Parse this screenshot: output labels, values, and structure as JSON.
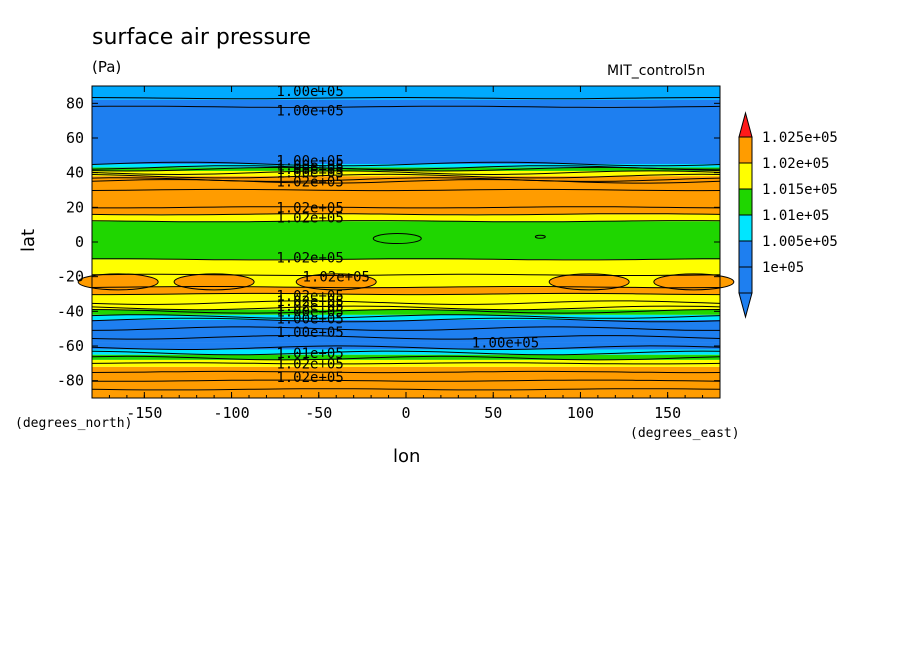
{
  "chart_data": {
    "type": "heatmap",
    "title": "surface air pressure",
    "units": "(Pa)",
    "run_name": "MIT_control5n",
    "xlabel": "lon",
    "ylabel": "lat",
    "x_units_label": "(degrees_east)",
    "y_units_label": "(degrees_north)",
    "xlim": [
      -180,
      180
    ],
    "ylim": [
      -90,
      90
    ],
    "x_ticks": [
      -150,
      -100,
      -50,
      0,
      50,
      100,
      150
    ],
    "y_ticks": [
      -80,
      -60,
      -40,
      -20,
      0,
      20,
      40,
      60,
      80
    ],
    "x_tick_labels": [
      "-150",
      "-100",
      "-50",
      "0",
      "50",
      "100",
      "150"
    ],
    "y_tick_labels": [
      "-80",
      "-60",
      "-40",
      "-20",
      "0",
      "20",
      "40",
      "60",
      "80"
    ],
    "colorbar": {
      "levels": [
        100000,
        100500,
        101000,
        101500,
        102000,
        102500
      ],
      "labels": [
        "1e+05",
        "1.005e+05",
        "1.01e+05",
        "1.015e+05",
        "1.02e+05",
        "1.025e+05"
      ],
      "colors": [
        "#1e7ff0",
        "#00e6ff",
        "#1fd600",
        "#ffff00",
        "#ff9c00",
        "#ff3030"
      ],
      "under_color": "#1e7ff0",
      "over_color": "#ff1a1a"
    },
    "zonal_bands": [
      {
        "lat_from": -90,
        "lat_to": -85,
        "color": "#ff9c00"
      },
      {
        "lat_from": -85,
        "lat_to": -72,
        "color": "#ff9c00"
      },
      {
        "lat_from": -72,
        "lat_to": -68,
        "color": "#ffff00"
      },
      {
        "lat_from": -68,
        "lat_to": -65,
        "color": "#1fd600"
      },
      {
        "lat_from": -65,
        "lat_to": -62,
        "color": "#00e6ff"
      },
      {
        "lat_from": -62,
        "lat_to": -58,
        "color": "#1e7ff0"
      },
      {
        "lat_from": -58,
        "lat_to": -45,
        "color": "#1e7ff0"
      },
      {
        "lat_from": -45,
        "lat_to": -42,
        "color": "#00e6ff"
      },
      {
        "lat_from": -42,
        "lat_to": -39,
        "color": "#1fd600"
      },
      {
        "lat_from": -39,
        "lat_to": -36,
        "color": "#ffff00"
      },
      {
        "lat_from": -36,
        "lat_to": -30,
        "color": "#ffff00"
      },
      {
        "lat_from": -30,
        "lat_to": -26,
        "color": "#ff9c00"
      },
      {
        "lat_from": -26,
        "lat_to": -19,
        "color": "#ffff00"
      },
      {
        "lat_from": -19,
        "lat_to": -10,
        "color": "#ffff00"
      },
      {
        "lat_from": -10,
        "lat_to": 12,
        "color": "#1fd600"
      },
      {
        "lat_from": 12,
        "lat_to": 16,
        "color": "#ffff00"
      },
      {
        "lat_from": 16,
        "lat_to": 38,
        "color": "#ff9c00"
      },
      {
        "lat_from": 38,
        "lat_to": 41,
        "color": "#ffff00"
      },
      {
        "lat_from": 41,
        "lat_to": 43,
        "color": "#1fd600"
      },
      {
        "lat_from": 43,
        "lat_to": 45,
        "color": "#00e6ff"
      },
      {
        "lat_from": 45,
        "lat_to": 78,
        "color": "#1e7ff0"
      },
      {
        "lat_from": 78,
        "lat_to": 82,
        "color": "#1e7ff0"
      },
      {
        "lat_from": 82,
        "lat_to": 90,
        "color": "#00aaff"
      }
    ],
    "orange_blobs_lat": -23,
    "orange_blobs_lon": [
      -165,
      -110,
      -40,
      105,
      165
    ],
    "contour_lines_lat": [
      -85,
      -80,
      -75,
      -70,
      -67,
      -64,
      -61,
      -55,
      -50,
      -45,
      -43,
      -40,
      -38,
      -35,
      -30,
      -26,
      -19,
      -10,
      12,
      16,
      20,
      30,
      35,
      36,
      38,
      40,
      42,
      43,
      45,
      78,
      83
    ],
    "contour_labels": [
      {
        "text": "1.00e+05",
        "lon": -55,
        "lat": 87
      },
      {
        "text": "1.00e+05",
        "lon": -55,
        "lat": 76
      },
      {
        "text": "1.00e+05",
        "lon": -55,
        "lat": 47
      },
      {
        "text": "1.00e+05",
        "lon": -55,
        "lat": 44
      },
      {
        "text": "1.00e+05",
        "lon": -55,
        "lat": 42
      },
      {
        "text": "1.00e+05",
        "lon": -55,
        "lat": 40
      },
      {
        "text": "1.02e+05",
        "lon": -55,
        "lat": 35
      },
      {
        "text": "1.02e+05",
        "lon": -55,
        "lat": 20
      },
      {
        "text": "1.02e+05",
        "lon": -55,
        "lat": 14
      },
      {
        "text": "1.02e+05",
        "lon": -55,
        "lat": -9
      },
      {
        "text": "1.02e+05",
        "lon": -40,
        "lat": -20
      },
      {
        "text": "1.02e+05",
        "lon": -55,
        "lat": -31
      },
      {
        "text": "1.02e+05",
        "lon": -55,
        "lat": -34
      },
      {
        "text": "1.02e+05",
        "lon": -55,
        "lat": -37
      },
      {
        "text": "1.00e+05",
        "lon": -55,
        "lat": -40
      },
      {
        "text": "1.00e+05",
        "lon": -55,
        "lat": -44
      },
      {
        "text": "1.00e+05",
        "lon": -55,
        "lat": -52
      },
      {
        "text": "1.00e+05",
        "lon": 57,
        "lat": -58
      },
      {
        "text": "1.01e+05",
        "lon": -55,
        "lat": -64
      },
      {
        "text": "1.02e+05",
        "lon": -55,
        "lat": -70
      },
      {
        "text": "1.02e+05",
        "lon": -55,
        "lat": -78
      }
    ]
  }
}
